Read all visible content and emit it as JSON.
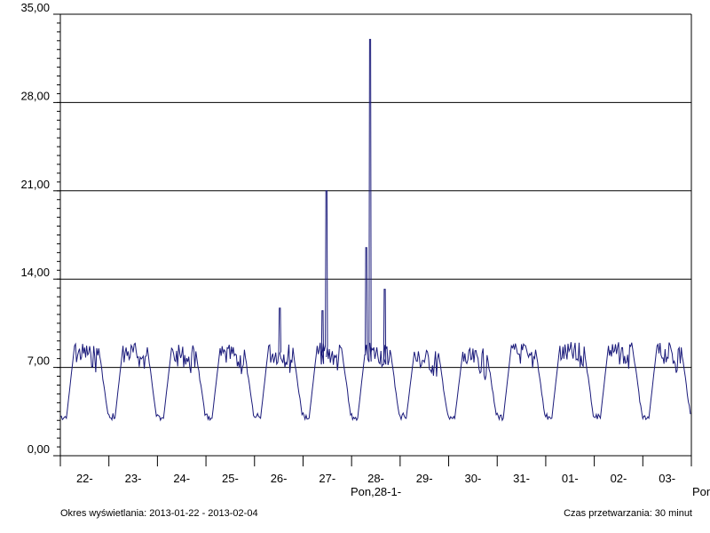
{
  "chart_data": {
    "type": "line",
    "title": "",
    "xlabel": "",
    "ylabel": "",
    "ylim": [
      0,
      35
    ],
    "y_ticks": [
      "0,00",
      "7,00",
      "14,00",
      "21,00",
      "28,00",
      "35,00"
    ],
    "y_tick_values": [
      0,
      7,
      14,
      21,
      28,
      35
    ],
    "gridlines": "horizontal at 7,00 14,00 21,00 28,00",
    "x_ticks": [
      "22-",
      "23-",
      "24-",
      "25-",
      "26-",
      "27-",
      "28-",
      "29-",
      "30-",
      "31-",
      "01-",
      "02-",
      "03-"
    ],
    "x_marker_label": "Pon,28-1-",
    "x_edge_label": "Pon",
    "line_color": "#1a1a7a",
    "grid_color": "#000000",
    "series": [
      {
        "sampling": "30 minut",
        "days": [
          {
            "day": "22-",
            "min": 2.8,
            "max": 9.0
          },
          {
            "day": "23-",
            "min": 2.8,
            "max": 9.7
          },
          {
            "day": "24-",
            "min": 2.8,
            "max": 8.8
          },
          {
            "day": "25-",
            "min": 2.8,
            "max": 8.8
          },
          {
            "day": "26-",
            "min": 2.8,
            "max": 11.7
          },
          {
            "day": "27-",
            "min": 2.8,
            "max": 21.0
          },
          {
            "day": "28-",
            "min": 2.8,
            "max": 33.0
          },
          {
            "day": "29-",
            "min": 2.8,
            "max": 8.5
          },
          {
            "day": "30-",
            "min": 2.8,
            "max": 8.5
          },
          {
            "day": "31-",
            "min": 2.8,
            "max": 9.2
          },
          {
            "day": "01-",
            "min": 2.8,
            "max": 9.2
          },
          {
            "day": "02-",
            "min": 2.8,
            "max": 9.7
          },
          {
            "day": "03-",
            "min": 2.8,
            "max": 10.4
          }
        ],
        "peaks": [
          {
            "day": "26-",
            "value": 11.7
          },
          {
            "day": "27-",
            "value": 21.0
          },
          {
            "day": "27-",
            "value": 11.5
          },
          {
            "day": "28-",
            "value": 16.5
          },
          {
            "day": "28-",
            "value": 33.0
          },
          {
            "day": "28-",
            "value": 13.2
          }
        ]
      }
    ]
  },
  "footer": {
    "period_label": "Okres wyświetlania: 2013-01-22 - 2013-02-04",
    "processing_label": "Czas przetwarzania: 30 minut"
  }
}
